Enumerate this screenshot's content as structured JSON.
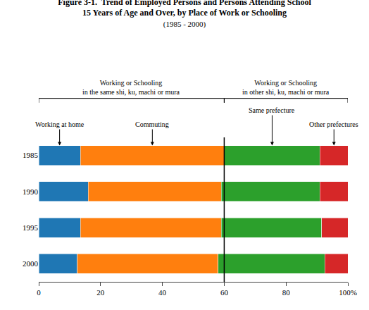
{
  "chart_data": {
    "type": "bar",
    "orientation": "horizontal",
    "stacked": true,
    "grid": false,
    "title": "Figure 3-1.  Trend of Employed Persons and Persons Attending School\n15 Years of Age and Over, by Place of Work or Schooling",
    "subtitle": "(1985 - 2000)",
    "categories": [
      "1985",
      "1990",
      "1995",
      "2000"
    ],
    "series": [
      {
        "name": "Working at home",
        "values": [
          13.5,
          16.0,
          13.5,
          12.5
        ]
      },
      {
        "name": "Commuting",
        "values": [
          46.5,
          43.0,
          45.5,
          45.5
        ]
      },
      {
        "name": "Same prefecture",
        "values": [
          31.0,
          32.0,
          32.5,
          34.5
        ]
      },
      {
        "name": "Other prefectures",
        "values": [
          9.0,
          9.0,
          8.5,
          7.5
        ]
      }
    ],
    "xlim": [
      0,
      100
    ],
    "xticks": [
      0,
      20,
      40,
      60,
      80,
      {
        "value": 100,
        "label": "100%"
      }
    ],
    "divider": 60,
    "groups": [
      {
        "label": "Working or Schooling\nin the same shi, ku, machi or mura",
        "start": 0,
        "end": 60
      },
      {
        "label": "Working or Schooling\nin other shi, ku, machi or mura",
        "start": 60,
        "end": 100
      }
    ]
  }
}
